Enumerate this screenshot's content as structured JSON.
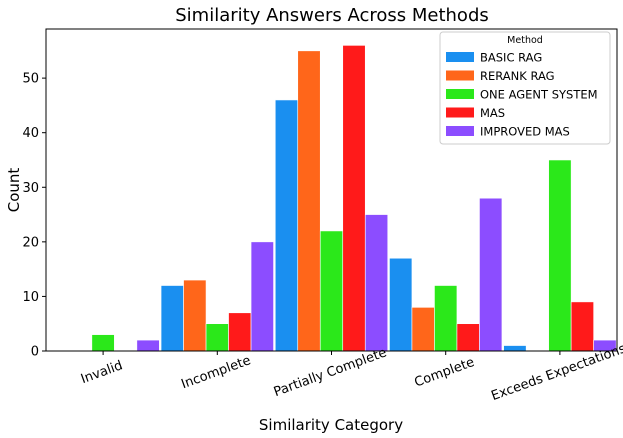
{
  "chart_data": {
    "type": "bar",
    "title": "Similarity Answers Across Methods",
    "xlabel": "Similarity Category",
    "ylabel": "Count",
    "ylim": [
      0,
      59
    ],
    "yticks": [
      0,
      10,
      20,
      30,
      40,
      50
    ],
    "categories": [
      "Invalid",
      "Incomplete",
      "Partially Complete",
      "Complete",
      "Exceeds Expectations"
    ],
    "legend": {
      "title": "Method",
      "placement": "top-right"
    },
    "series": [
      {
        "name": "BASIC RAG",
        "color": "#1a8ff0",
        "values": [
          0,
          12,
          46,
          17,
          1
        ]
      },
      {
        "name": "RERANK RAG",
        "color": "#ff661a",
        "values": [
          0,
          13,
          55,
          8,
          0
        ]
      },
      {
        "name": "ONE AGENT SYSTEM",
        "color": "#2be81a",
        "values": [
          3,
          5,
          22,
          12,
          35
        ]
      },
      {
        "name": "MAS",
        "color": "#ff1a1a",
        "values": [
          0,
          7,
          56,
          5,
          9
        ]
      },
      {
        "name": "IMPROVED MAS",
        "color": "#8c4dff",
        "values": [
          2,
          20,
          25,
          28,
          2
        ]
      }
    ],
    "grid": false
  }
}
